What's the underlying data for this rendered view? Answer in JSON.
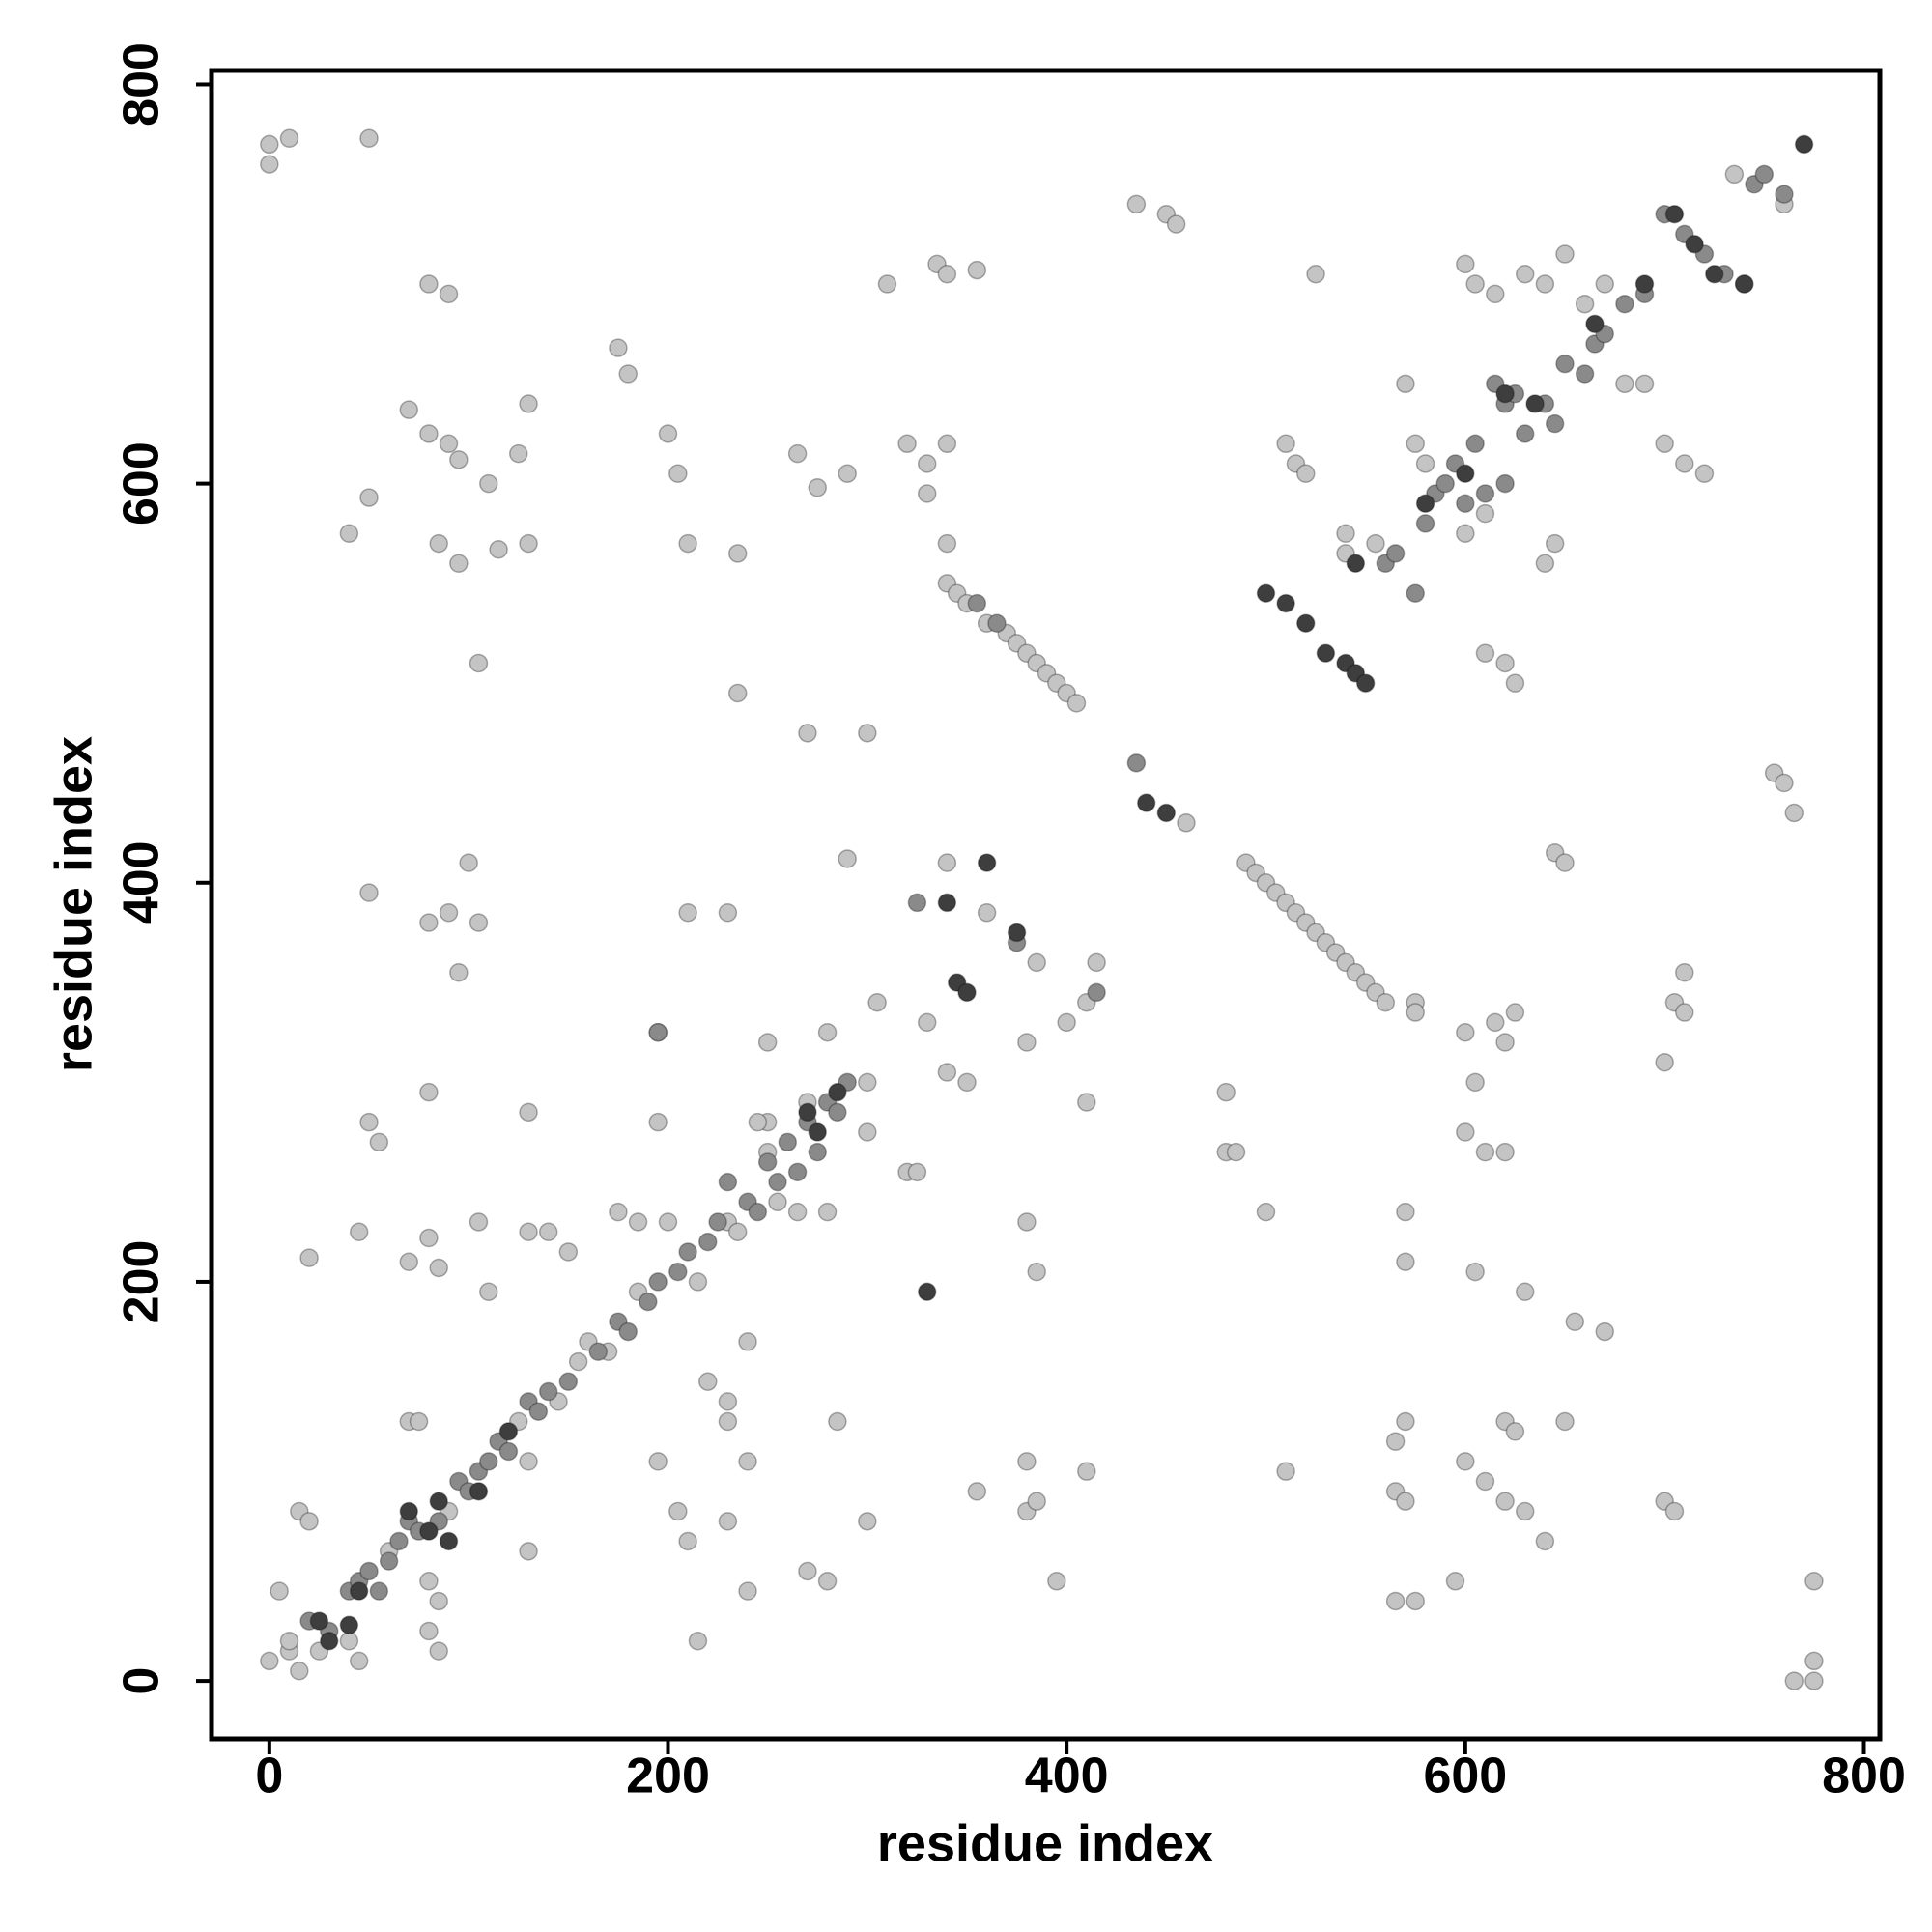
{
  "chart_data": {
    "type": "scatter",
    "xlabel": "residue index",
    "ylabel": "residue index",
    "xlim": [
      -29,
      808
    ],
    "ylim": [
      -29,
      807
    ],
    "xticks": [
      0,
      200,
      400,
      600,
      800
    ],
    "yticks": [
      0,
      200,
      400,
      600,
      800
    ],
    "series": [
      {
        "color": "#c4c4c4",
        "x": [
          0,
          0,
          10,
          50,
          435,
          450,
          455,
          310,
          335,
          340,
          355,
          80,
          90,
          175,
          180,
          70,
          80,
          90,
          130,
          125,
          95,
          110,
          50,
          40,
          85,
          95,
          115,
          130,
          200,
          205,
          210,
          235,
          265,
          275,
          290,
          320,
          330,
          340,
          330,
          340,
          105,
          235,
          270,
          300,
          80,
          90,
          100,
          105,
          95,
          50,
          210,
          230,
          290,
          340,
          360,
          385,
          400,
          410,
          415,
          305,
          330,
          340,
          350,
          380,
          410,
          250,
          250,
          280,
          195,
          195,
          130,
          80,
          50,
          55,
          45,
          20,
          70,
          85,
          80,
          105,
          130,
          140,
          150,
          110,
          175,
          185,
          230,
          195,
          205,
          210,
          215,
          220,
          230,
          240,
          230,
          230,
          240,
          240,
          285,
          300,
          270,
          280,
          15,
          20,
          5,
          0,
          10,
          15,
          40,
          45,
          80,
          85,
          80,
          85,
          130,
          130,
          70,
          75,
          320,
          325,
          265,
          280,
          300,
          380,
          385,
          395,
          355,
          380,
          380,
          385,
          410,
          480,
          480,
          485,
          500,
          600,
          600,
          605,
          610,
          620,
          620,
          615,
          625,
          630,
          650,
          655,
          670,
          640,
          630,
          620,
          610,
          600,
          605,
          595,
          575,
          565,
          565,
          570,
          565,
          570,
          570,
          570,
          575,
          575,
          700,
          705,
          700,
          705,
          710,
          710,
          755,
          760,
          765,
          645,
          650,
          510,
          765,
          775,
          775,
          775,
          735,
          760,
          620,
          625,
          10,
          25,
          60,
          90,
          125,
          145,
          155,
          160,
          170,
          185,
          200,
          215,
          235,
          245,
          250,
          255,
          270,
          300,
          570,
          575,
          580,
          600,
          605,
          615,
          630,
          640,
          650,
          660,
          670,
          680,
          690,
          700,
          710,
          720,
          640,
          645,
          600,
          610,
          525,
          510,
          515,
          520,
          540,
          555,
          540,
          610,
          620,
          625,
          340,
          345,
          350,
          360,
          370,
          375,
          380,
          385,
          390,
          395,
          400,
          405,
          490,
          495,
          500,
          505,
          510,
          515,
          520,
          525,
          530,
          535,
          540,
          545,
          550,
          555,
          560,
          460
        ],
        "values": [
          770,
          760,
          773,
          773,
          740,
          735,
          730,
          700,
          710,
          705,
          707,
          700,
          695,
          668,
          655,
          637,
          625,
          620,
          640,
          615,
          612,
          600,
          593,
          575,
          570,
          560,
          567,
          570,
          625,
          605,
          570,
          565,
          615,
          598,
          605,
          620,
          610,
          620,
          595,
          570,
          510,
          495,
          475,
          475,
          380,
          385,
          410,
          380,
          355,
          395,
          385,
          385,
          412,
          410,
          385,
          360,
          330,
          340,
          360,
          340,
          330,
          305,
          300,
          320,
          290,
          320,
          280,
          325,
          325,
          280,
          285,
          295,
          280,
          270,
          225,
          212,
          210,
          207,
          222,
          230,
          225,
          225,
          215,
          195,
          235,
          230,
          230,
          110,
          85,
          70,
          20,
          150,
          80,
          45,
          130,
          140,
          110,
          170,
          130,
          80,
          55,
          50,
          85,
          80,
          45,
          10,
          15,
          5,
          20,
          10,
          50,
          40,
          25,
          15,
          65,
          110,
          130,
          130,
          255,
          255,
          235,
          235,
          275,
          230,
          205,
          50,
          95,
          110,
          85,
          90,
          105,
          295,
          265,
          265,
          235,
          325,
          275,
          300,
          265,
          265,
          320,
          330,
          335,
          195,
          130,
          180,
          175,
          70,
          85,
          90,
          100,
          110,
          205,
          50,
          40,
          40,
          120,
          130,
          95,
          90,
          210,
          235,
          340,
          335,
          90,
          85,
          310,
          340,
          355,
          335,
          455,
          450,
          435,
          415,
          410,
          105,
          0,
          0,
          10,
          50,
          755,
          740,
          130,
          125,
          20,
          15,
          65,
          85,
          130,
          140,
          160,
          170,
          165,
          195,
          230,
          200,
          225,
          280,
          265,
          240,
          290,
          300,
          650,
          620,
          610,
          710,
          700,
          695,
          705,
          700,
          715,
          690,
          700,
          650,
          650,
          620,
          610,
          605,
          560,
          570,
          575,
          585,
          705,
          620,
          610,
          605,
          575,
          570,
          565,
          515,
          510,
          500,
          550,
          545,
          540,
          530,
          525,
          520,
          515,
          510,
          505,
          500,
          495,
          490,
          410,
          405,
          400,
          395,
          390,
          385,
          380,
          375,
          370,
          365,
          360,
          355,
          350,
          345,
          340,
          430
        ]
      },
      {
        "color": "#8a8a8a",
        "x": [
          20,
          30,
          40,
          45,
          50,
          55,
          60,
          65,
          70,
          75,
          85,
          95,
          100,
          105,
          110,
          115,
          120,
          130,
          135,
          140,
          150,
          165,
          175,
          180,
          190,
          195,
          205,
          210,
          220,
          225,
          230,
          240,
          245,
          250,
          255,
          260,
          265,
          270,
          275,
          280,
          285,
          290,
          560,
          565,
          580,
          585,
          590,
          595,
          600,
          610,
          615,
          620,
          625,
          630,
          640,
          645,
          650,
          660,
          665,
          670,
          680,
          690,
          700,
          710,
          720,
          730,
          740,
          745,
          750,
          760,
          355,
          365,
          435,
          575,
          620,
          605,
          325,
          375,
          415,
          195
        ],
        "values": [
          30,
          25,
          45,
          50,
          55,
          45,
          60,
          70,
          80,
          75,
          80,
          100,
          95,
          105,
          110,
          120,
          115,
          140,
          135,
          145,
          150,
          165,
          180,
          175,
          190,
          200,
          205,
          215,
          220,
          230,
          250,
          240,
          235,
          260,
          250,
          270,
          255,
          280,
          265,
          290,
          285,
          300,
          560,
          565,
          580,
          595,
          600,
          610,
          590,
          595,
          650,
          640,
          645,
          625,
          640,
          630,
          660,
          655,
          670,
          675,
          690,
          695,
          735,
          725,
          715,
          705,
          700,
          750,
          755,
          745,
          540,
          530,
          460,
          545,
          600,
          620,
          390,
          370,
          345,
          325
        ]
      },
      {
        "color": "#3e3e3e",
        "x": [
          25,
          30,
          40,
          45,
          70,
          80,
          85,
          90,
          105,
          120,
          270,
          285,
          275,
          500,
          510,
          520,
          530,
          540,
          545,
          550,
          545,
          580,
          600,
          620,
          635,
          665,
          690,
          705,
          715,
          725,
          740,
          770,
          375,
          345,
          350,
          360,
          440,
          450,
          330,
          340
        ],
        "values": [
          30,
          20,
          28,
          45,
          85,
          75,
          90,
          70,
          95,
          125,
          285,
          295,
          275,
          545,
          540,
          530,
          515,
          510,
          505,
          500,
          560,
          590,
          605,
          645,
          640,
          680,
          700,
          735,
          720,
          705,
          700,
          770,
          375,
          350,
          345,
          410,
          440,
          435,
          195,
          390
        ]
      }
    ]
  }
}
